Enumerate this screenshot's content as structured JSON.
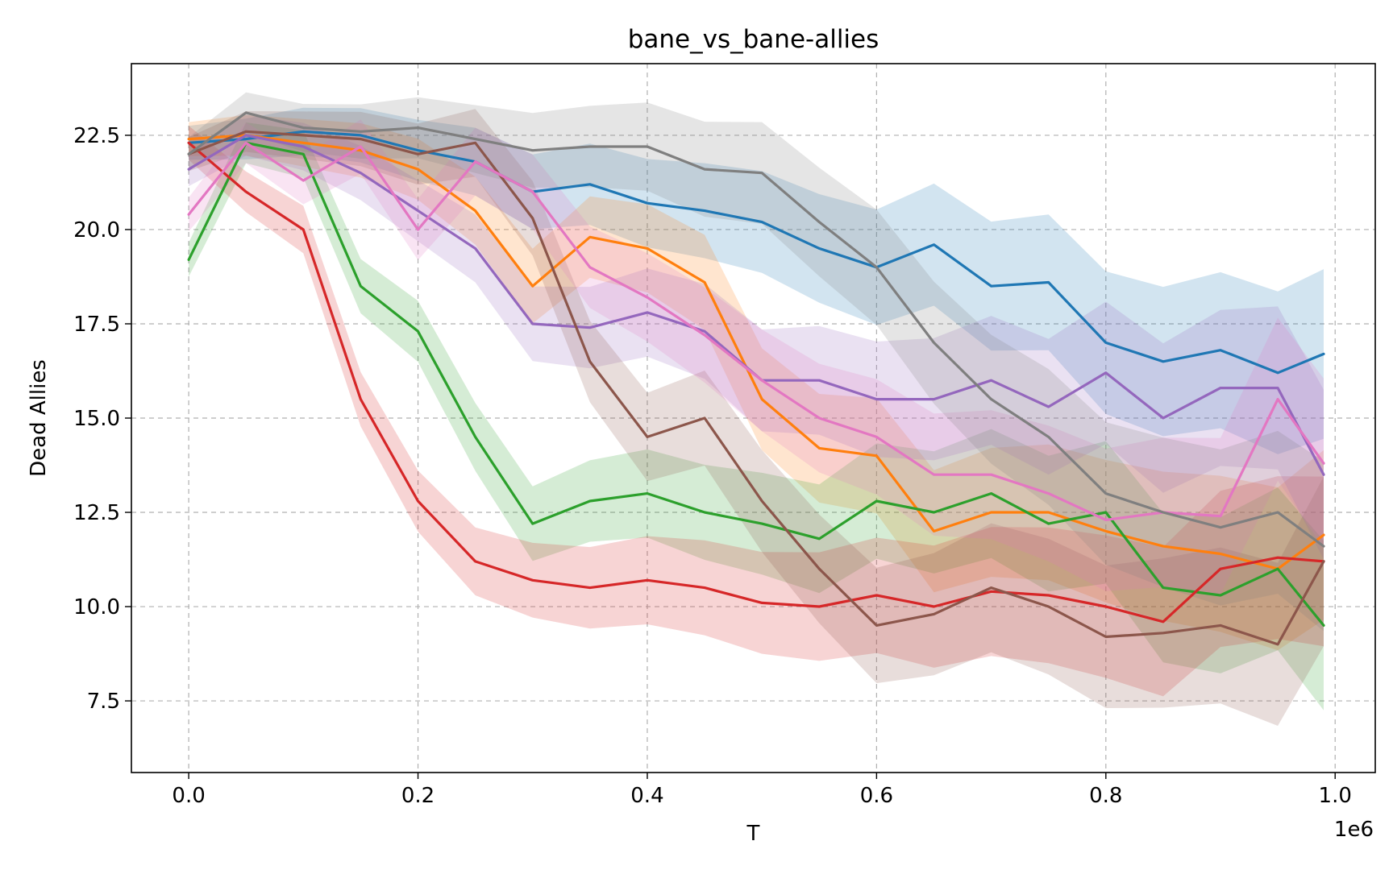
{
  "chart_data": {
    "type": "line",
    "title": "bane_vs_bane-allies",
    "xlabel": "T",
    "ylabel": "Dead Allies",
    "x_offset_text": "1e6",
    "xlim": [
      -0.05,
      1.035
    ],
    "ylim": [
      5.6,
      24.4
    ],
    "x_ticks": [
      0.0,
      0.2,
      0.4,
      0.6,
      0.8,
      1.0
    ],
    "x_tick_labels": [
      "0.0",
      "0.2",
      "0.4",
      "0.6",
      "0.8",
      "1.0"
    ],
    "y_ticks": [
      7.5,
      10.0,
      12.5,
      15.0,
      17.5,
      20.0,
      22.5
    ],
    "y_tick_labels": [
      "7.5",
      "10.0",
      "12.5",
      "15.0",
      "17.5",
      "20.0",
      "22.5"
    ],
    "grid": true,
    "legend": "none",
    "shaded_band_opacity": 0.2,
    "x": [
      0.0,
      0.05,
      0.1,
      0.15,
      0.2,
      0.25,
      0.3,
      0.35,
      0.4,
      0.45,
      0.5,
      0.55,
      0.6,
      0.65,
      0.7,
      0.75,
      0.8,
      0.85,
      0.9,
      0.95,
      0.99
    ],
    "series": [
      {
        "color": "#1f77b4",
        "values": [
          22.3,
          22.4,
          22.6,
          22.5,
          22.1,
          21.8,
          21.0,
          21.2,
          20.7,
          20.5,
          20.2,
          19.5,
          19.0,
          19.6,
          18.5,
          18.6,
          17.0,
          16.5,
          16.8,
          16.2,
          16.7
        ]
      },
      {
        "color": "#ff7f0e",
        "values": [
          22.4,
          22.5,
          22.3,
          22.1,
          21.6,
          20.5,
          18.5,
          19.8,
          19.5,
          18.6,
          15.5,
          14.2,
          14.0,
          12.0,
          12.5,
          12.5,
          12.0,
          11.6,
          11.4,
          11.0,
          11.9
        ]
      },
      {
        "color": "#2ca02c",
        "values": [
          19.2,
          22.3,
          22.0,
          18.5,
          17.3,
          14.5,
          12.2,
          12.8,
          13.0,
          12.5,
          12.2,
          11.8,
          12.8,
          12.5,
          13.0,
          12.2,
          12.5,
          10.5,
          10.3,
          11.0,
          9.5
        ]
      },
      {
        "color": "#d62728",
        "values": [
          22.3,
          21.0,
          20.0,
          15.5,
          12.8,
          11.2,
          10.7,
          10.5,
          10.7,
          10.5,
          10.1,
          10.0,
          10.3,
          10.0,
          10.4,
          10.3,
          10.0,
          9.6,
          11.0,
          11.3,
          11.2
        ]
      },
      {
        "color": "#9467bd",
        "values": [
          21.6,
          22.5,
          22.2,
          21.5,
          20.5,
          19.5,
          17.5,
          17.4,
          17.8,
          17.3,
          16.0,
          16.0,
          15.5,
          15.5,
          16.0,
          15.3,
          16.2,
          15.0,
          15.8,
          15.8,
          13.5
        ]
      },
      {
        "color": "#8c564b",
        "values": [
          22.0,
          22.6,
          22.5,
          22.4,
          22.0,
          22.3,
          20.3,
          16.5,
          14.5,
          15.0,
          12.8,
          11.0,
          9.5,
          9.8,
          10.5,
          10.0,
          9.2,
          9.3,
          9.5,
          9.0,
          11.2
        ]
      },
      {
        "color": "#e377c2",
        "values": [
          20.4,
          22.3,
          21.3,
          22.2,
          20.0,
          21.8,
          21.0,
          19.0,
          18.2,
          17.2,
          16.0,
          15.0,
          14.5,
          13.5,
          13.5,
          13.0,
          12.3,
          12.5,
          12.4,
          15.5,
          13.8
        ]
      },
      {
        "color": "#7f7f7f",
        "values": [
          22.0,
          23.1,
          22.7,
          22.6,
          22.7,
          22.4,
          22.1,
          22.2,
          22.2,
          21.6,
          21.5,
          20.2,
          19.0,
          17.0,
          15.5,
          14.5,
          13.0,
          12.5,
          12.1,
          12.5,
          11.6
        ]
      }
    ]
  }
}
